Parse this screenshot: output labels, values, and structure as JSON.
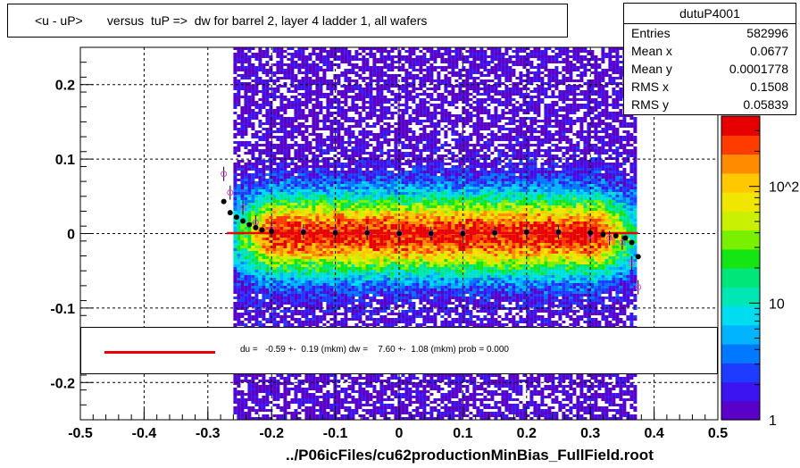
{
  "title": "<u - uP>       versus  tuP =>  dw for barrel 2, layer 4 ladder 1, all wafers",
  "stats": {
    "name": "dutuP4001",
    "rows": [
      {
        "label": "Entries",
        "value": "582996"
      },
      {
        "label": "Mean x",
        "value": "0.0677"
      },
      {
        "label": "Mean y",
        "value": "0.0001778"
      },
      {
        "label": "RMS x",
        "value": "0.1508"
      },
      {
        "label": "RMS y",
        "value": "0.05839"
      }
    ]
  },
  "fit_text": "du =   -0.59 +-  0.19 (mkm) dw =    7.60 +-  1.08 (mkm) prob = 0.000",
  "file_label": "../P06icFiles/cu62productionMinBias_FullField.root",
  "colors": {
    "fit_line": "#e8000b",
    "points_filled": "#000000",
    "points_open": "#e040e0"
  },
  "chart_data": {
    "type": "heatmap",
    "xlim": [
      -0.5,
      0.5
    ],
    "ylim": [
      -0.25,
      0.25
    ],
    "x_ticks": [
      "-0.5",
      "-0.4",
      "-0.3",
      "-0.2",
      "-0.1",
      "0",
      "0.1",
      "0.2",
      "0.3",
      "0.4",
      "0.5"
    ],
    "y_ticks": [
      "-0.2",
      "-0.1",
      "0",
      "0.1",
      "0.2"
    ],
    "z_scale": "log",
    "z_ticks": [
      "1",
      "10",
      "10^2"
    ],
    "grid": true,
    "occupied_x_range": [
      -0.26,
      0.37
    ],
    "profile_filled": {
      "x": [
        -0.275,
        -0.265,
        -0.255,
        -0.245,
        -0.235,
        -0.225,
        -0.215,
        -0.2,
        -0.15,
        -0.1,
        -0.05,
        0.0,
        0.05,
        0.1,
        0.15,
        0.2,
        0.25,
        0.3,
        0.32,
        0.34,
        0.355,
        0.365,
        0.375
      ],
      "y": [
        0.043,
        0.028,
        0.022,
        0.017,
        0.012,
        0.008,
        0.005,
        0.003,
        0.002,
        0.001,
        0.001,
        0.0,
        0.0,
        0.0,
        0.001,
        0.002,
        0.002,
        0.001,
        -0.001,
        -0.003,
        -0.006,
        -0.012,
        -0.031
      ]
    },
    "profile_open": {
      "x": [
        -0.275,
        -0.265,
        -0.245,
        -0.225,
        -0.2,
        -0.15,
        -0.1,
        -0.05,
        0.0,
        0.05,
        0.1,
        0.15,
        0.2,
        0.25,
        0.3,
        0.33,
        0.35,
        0.365,
        0.375
      ],
      "y": [
        0.08,
        0.055,
        0.035,
        0.015,
        0.006,
        0.003,
        0.002,
        0.001,
        0.0,
        0.0,
        0.001,
        0.001,
        0.002,
        0.002,
        -0.002,
        -0.006,
        -0.012,
        -0.04,
        -0.072
      ]
    },
    "fit_line": {
      "x": [
        -0.27,
        0.375
      ],
      "y": [
        0.0006,
        0.0006
      ]
    }
  }
}
